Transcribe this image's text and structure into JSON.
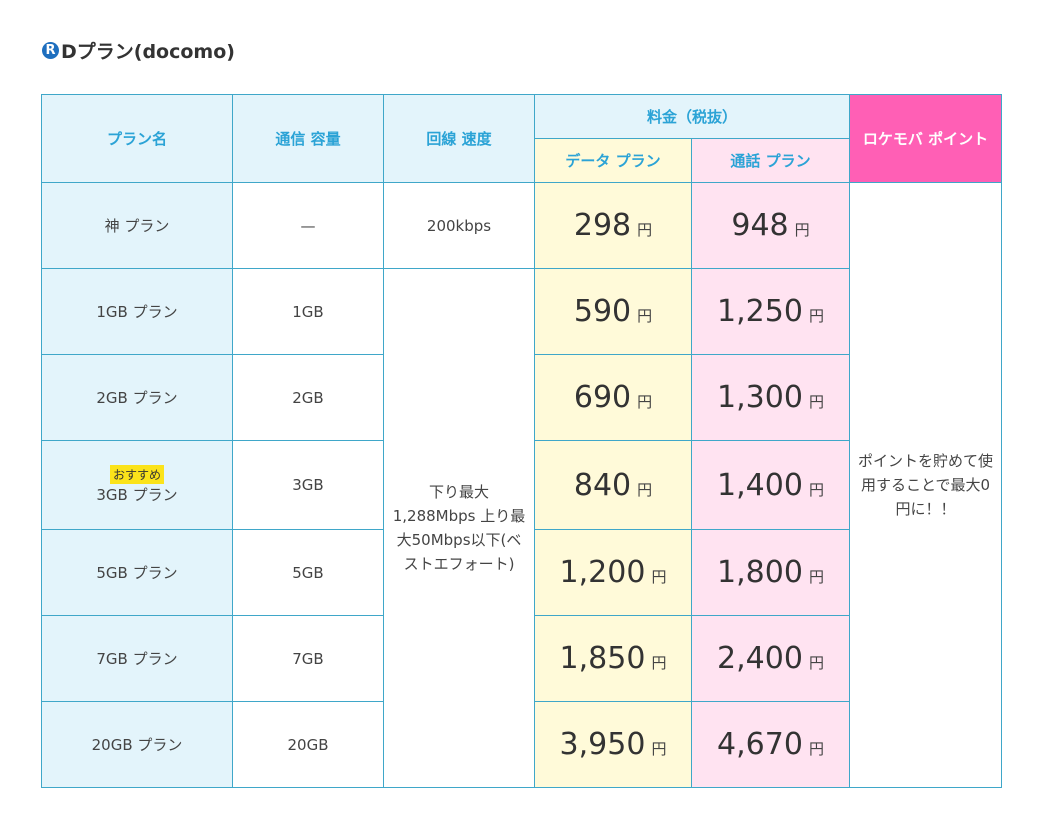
{
  "title": {
    "logo": "R",
    "text": "Dプラン(docomo)"
  },
  "headers": {
    "plan_name": "プラン名",
    "capacity": "通信 容量",
    "speed": "回線 速度",
    "fee": "料金（税抜）",
    "data_plan": "データ プラン",
    "call_plan": "通話 プラン",
    "points": "ロケモバ ポイント"
  },
  "yen": "円",
  "badge": "おすすめ",
  "shared_speed": "下り最大1,288Mbps 上り最大50Mbps以下(ベストエフォート)",
  "points_note": "ポイントを貯めて使用することで最大0円に！！",
  "rows": [
    {
      "name": "神 プラン",
      "capacity": "—",
      "speed": "200kbps",
      "data": "298",
      "call": "948"
    },
    {
      "name": "1GB プラン",
      "capacity": "1GB",
      "data": "590",
      "call": "1,250"
    },
    {
      "name": "2GB プラン",
      "capacity": "2GB",
      "data": "690",
      "call": "1,300"
    },
    {
      "name": "3GB プラン",
      "capacity": "3GB",
      "data": "840",
      "call": "1,400"
    },
    {
      "name": "5GB プラン",
      "capacity": "5GB",
      "data": "1,200",
      "call": "1,800"
    },
    {
      "name": "7GB プラン",
      "capacity": "7GB",
      "data": "1,850",
      "call": "2,400"
    },
    {
      "name": "20GB プラン",
      "capacity": "20GB",
      "data": "3,950",
      "call": "4,670"
    }
  ]
}
